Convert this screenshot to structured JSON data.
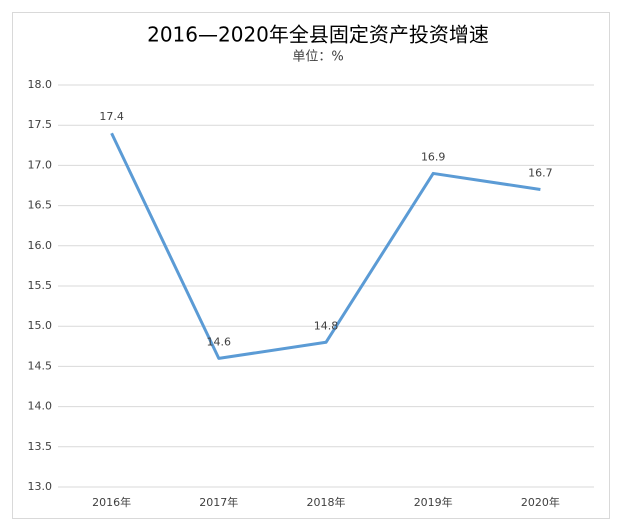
{
  "chart_data": {
    "type": "line",
    "title": "2016—2020年全县固定资产投资增速",
    "subtitle": "单位：%",
    "categories": [
      "2016年",
      "2017年",
      "2018年",
      "2019年",
      "2020年"
    ],
    "series": [
      {
        "name": "增速",
        "color": "#5b9bd5",
        "values": [
          17.4,
          14.6,
          14.8,
          16.9,
          16.7
        ]
      }
    ],
    "ylim": [
      13,
      18
    ],
    "yticks": [
      {
        "value": 13,
        "label": "13.0"
      },
      13.5,
      {
        "value": 14,
        "label": "14.0"
      },
      14.5,
      {
        "value": 15,
        "label": "15.0"
      },
      15.5,
      {
        "value": 16,
        "label": "16.0"
      },
      16.5,
      {
        "value": 17,
        "label": "17.0"
      },
      17.5,
      {
        "value": 18,
        "label": "18.0"
      }
    ],
    "grid": true
  }
}
